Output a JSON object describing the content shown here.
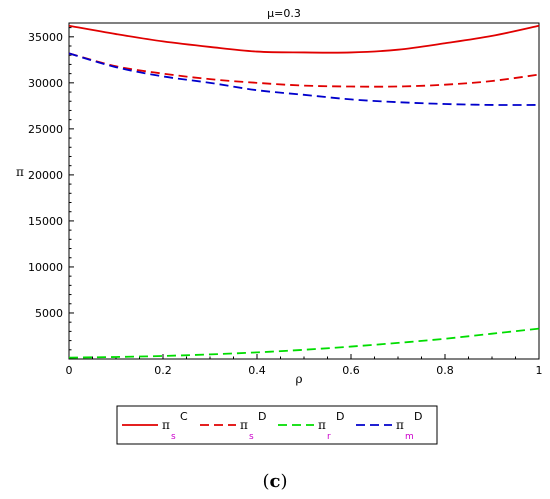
{
  "chart_data": {
    "type": "line",
    "title": "μ=0.3",
    "xlabel": "ρ",
    "ylabel": "π",
    "xlim": [
      0,
      1
    ],
    "ylim": [
      0,
      36500
    ],
    "x_ticks": [
      0,
      0.2,
      0.4,
      0.6,
      0.8,
      1
    ],
    "x_tick_labels": [
      "0",
      "0.2",
      "0.4",
      "0.6",
      "0.8",
      "1"
    ],
    "y_ticks": [
      5000,
      10000,
      15000,
      20000,
      25000,
      30000,
      35000
    ],
    "y_tick_labels": [
      "5000",
      "10000",
      "15000",
      "20000",
      "25000",
      "30000",
      "35000"
    ],
    "grid": false,
    "legend_position": "bottom",
    "x": [
      0,
      0.1,
      0.2,
      0.3,
      0.4,
      0.5,
      0.6,
      0.7,
      0.8,
      0.9,
      1.0
    ],
    "series": [
      {
        "symbol": "π",
        "sub": "s",
        "sup": "C",
        "color": "#e00000",
        "dash": "solid",
        "values": [
          36200,
          35300,
          34500,
          33900,
          33400,
          33300,
          33300,
          33600,
          34300,
          35100,
          36200
        ]
      },
      {
        "symbol": "π",
        "sub": "s",
        "sup": "D",
        "color": "#e00000",
        "dash": "dashed",
        "values": [
          33200,
          31800,
          31000,
          30400,
          30000,
          29700,
          29600,
          29600,
          29800,
          30200,
          30900
        ]
      },
      {
        "symbol": "π",
        "sub": "r",
        "sup": "D",
        "color": "#00dd00",
        "dash": "dashed",
        "values": [
          150,
          220,
          330,
          500,
          720,
          1000,
          1350,
          1750,
          2200,
          2750,
          3300
        ]
      },
      {
        "symbol": "π",
        "sub": "m",
        "sup": "D",
        "color": "#0000cc",
        "dash": "dashed",
        "values": [
          33200,
          31700,
          30700,
          30000,
          29200,
          28700,
          28200,
          27900,
          27700,
          27600,
          27600
        ]
      }
    ]
  },
  "caption": {
    "open": "(",
    "letter": "c",
    "close": ")"
  }
}
